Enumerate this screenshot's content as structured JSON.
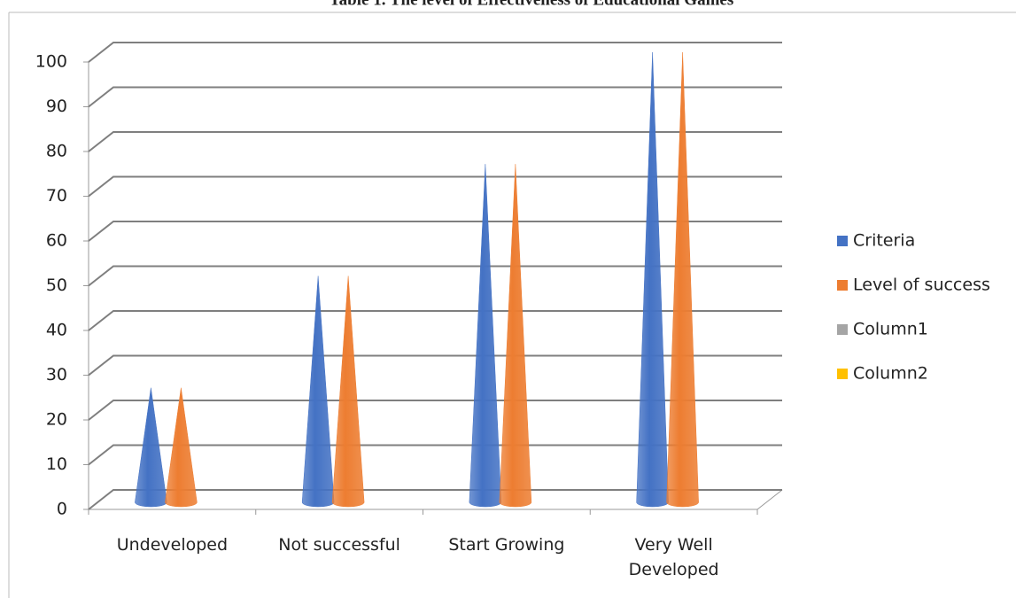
{
  "chart_data": {
    "type": "cone",
    "title": "Table 1. The level of Effectiveness of Educational Games",
    "categories": [
      "Undeveloped",
      "Not successful",
      "Start Growing",
      "Very Well Developed"
    ],
    "series": [
      {
        "name": "Criteria",
        "color": "#4472c4",
        "values": [
          25,
          50,
          75,
          100
        ]
      },
      {
        "name": "Level of success",
        "color": "#ed7d31",
        "values": [
          25,
          50,
          75,
          100
        ]
      },
      {
        "name": "Column1",
        "color": "#a5a5a5",
        "values": [
          null,
          null,
          null,
          null
        ]
      },
      {
        "name": "Column2",
        "color": "#ffc000",
        "values": [
          null,
          null,
          null,
          null
        ]
      }
    ],
    "ylim": [
      0,
      100
    ],
    "yticks": [
      0,
      10,
      20,
      30,
      40,
      50,
      60,
      70,
      80,
      90,
      100
    ],
    "grid": true,
    "legend": "right"
  }
}
